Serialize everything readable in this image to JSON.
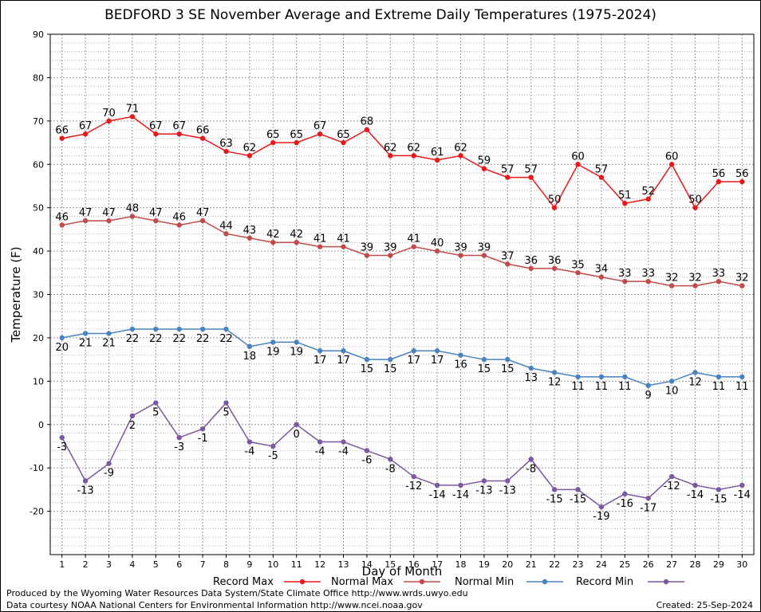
{
  "chart_data": {
    "type": "line",
    "title": "BEDFORD 3 SE November Average and Extreme Daily Temperatures (1975-2024)",
    "xlabel": "Day of Month",
    "ylabel": "Temperature (F)",
    "xlim": [
      0.5,
      30.5
    ],
    "ylim": [
      -30,
      90
    ],
    "yticks": [
      -20,
      -10,
      0,
      10,
      20,
      30,
      40,
      50,
      60,
      70,
      80,
      90
    ],
    "x": [
      1,
      2,
      3,
      4,
      5,
      6,
      7,
      8,
      9,
      10,
      11,
      12,
      13,
      14,
      15,
      16,
      17,
      18,
      19,
      20,
      21,
      22,
      23,
      24,
      25,
      26,
      27,
      28,
      29,
      30
    ],
    "grid": true,
    "legend_placement": "bottom",
    "series": [
      {
        "name": "Record Max",
        "color": "#e8191b",
        "label_pos": "above",
        "values": [
          66,
          67,
          70,
          71,
          67,
          67,
          66,
          63,
          62,
          65,
          65,
          67,
          65,
          68,
          62,
          62,
          61,
          62,
          59,
          57,
          57,
          50,
          60,
          57,
          51,
          52,
          60,
          50,
          56,
          56
        ]
      },
      {
        "name": "Normal Max",
        "color": "#c24a4a",
        "label_pos": "above",
        "values": [
          46,
          47,
          47,
          48,
          47,
          46,
          47,
          44,
          43,
          42,
          42,
          41,
          41,
          39,
          39,
          41,
          40,
          39,
          39,
          37,
          36,
          36,
          35,
          34,
          33,
          33,
          32,
          32,
          33,
          32
        ]
      },
      {
        "name": "Normal Min",
        "color": "#4a83be",
        "label_pos": "below",
        "values": [
          20,
          21,
          21,
          22,
          22,
          22,
          22,
          22,
          18,
          19,
          19,
          17,
          17,
          15,
          15,
          17,
          17,
          16,
          15,
          15,
          13,
          12,
          11,
          11,
          11,
          9,
          10,
          12,
          11,
          11
        ]
      },
      {
        "name": "Record Min",
        "color": "#7c58a0",
        "label_pos": "below",
        "values": [
          -3,
          -13,
          -9,
          2,
          5,
          -3,
          -1,
          5,
          -4,
          -5,
          0,
          -4,
          -4,
          -6,
          -8,
          -12,
          -14,
          -14,
          -13,
          -13,
          -8,
          -15,
          -15,
          -19,
          -16,
          -17,
          -12,
          -14,
          -15,
          -14
        ]
      }
    ]
  },
  "footer": {
    "produced_by": "Produced by the Wyoming Water Resources Data System/State Climate Office http://www.wrds.uwyo.edu",
    "courtesy": "Data courtesy NOAA National Centers for Environmental Information http://www.ncei.noaa.gov",
    "created": "Created:  25-Sep-2024"
  }
}
